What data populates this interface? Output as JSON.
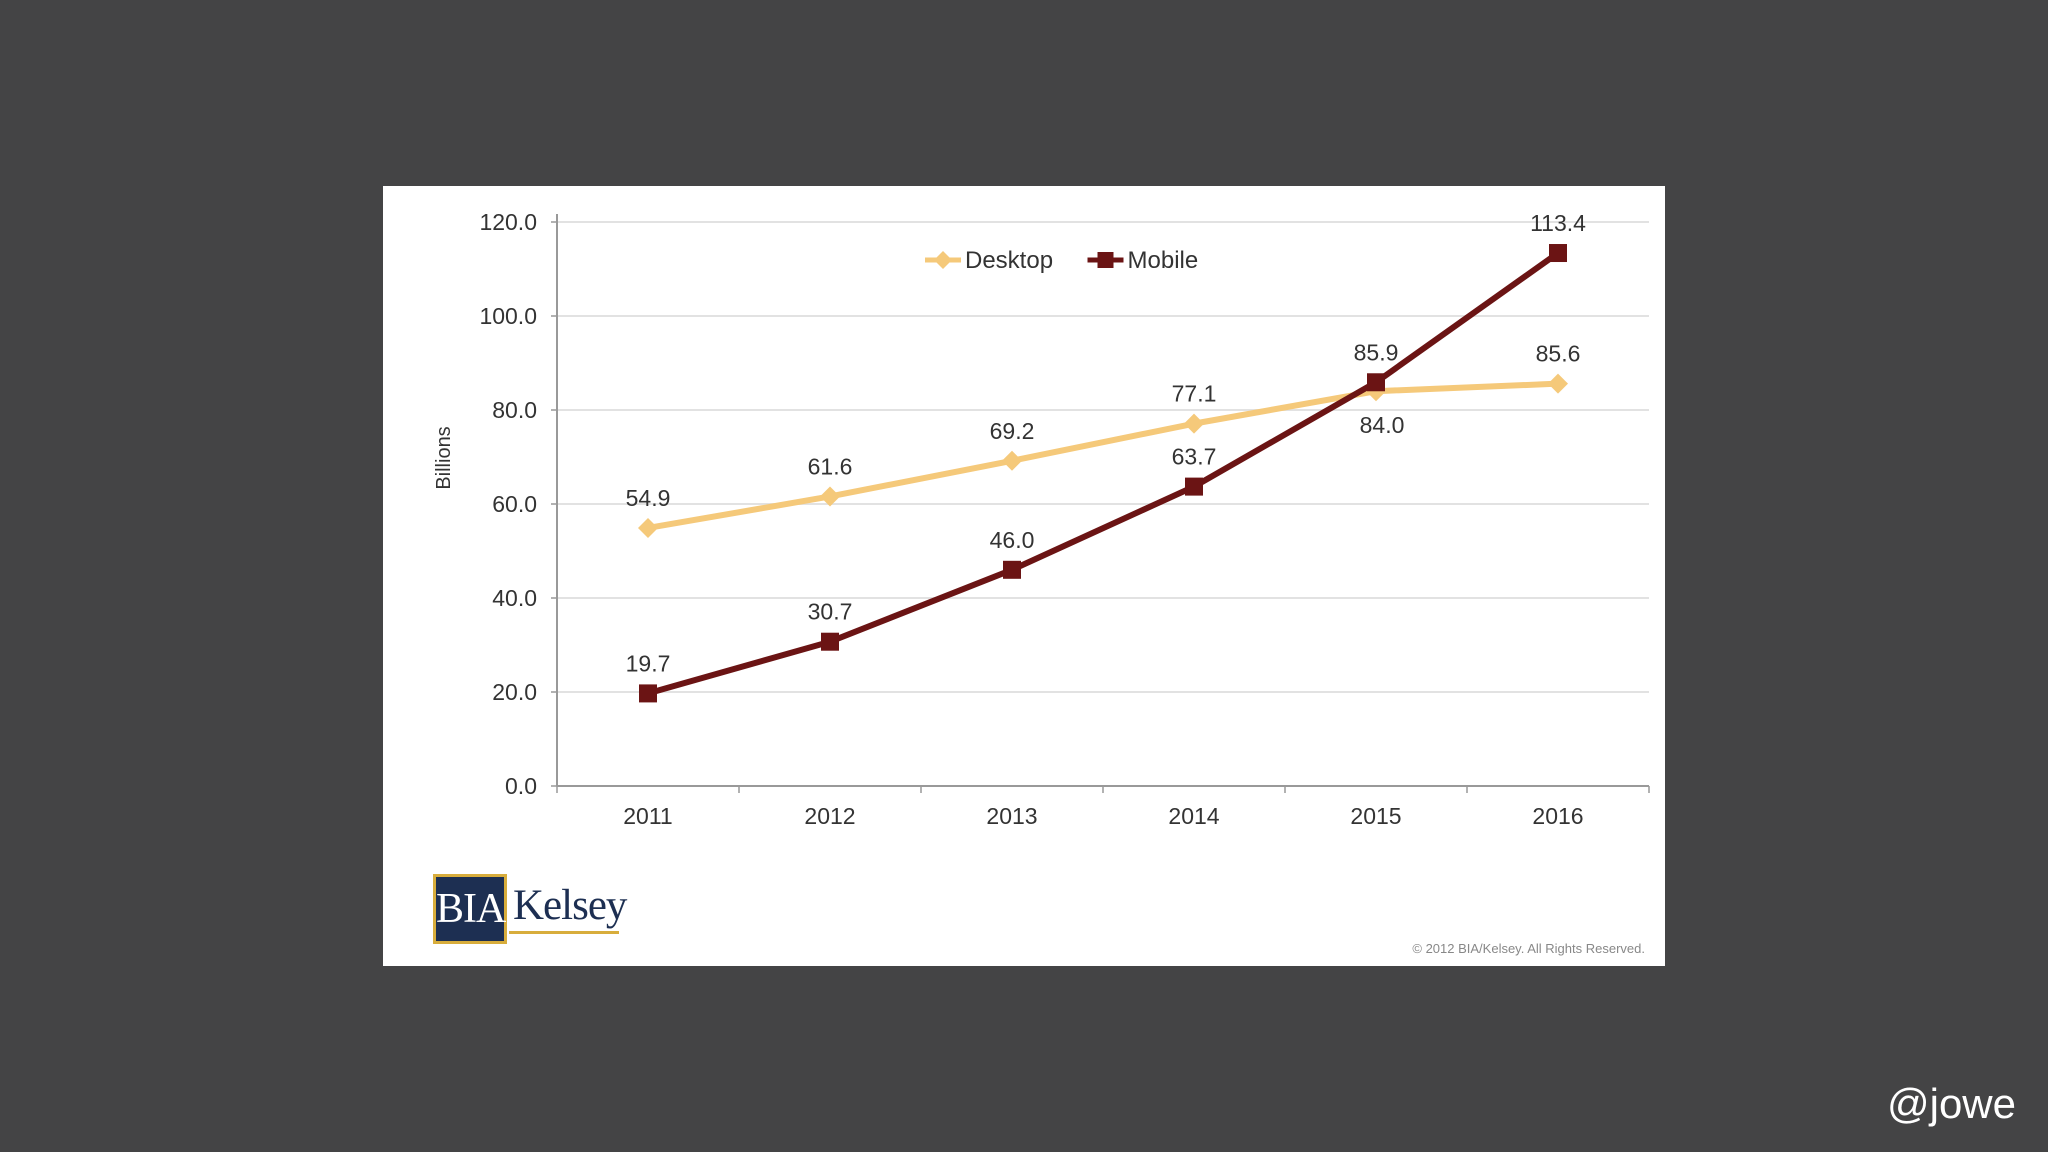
{
  "chart_data": {
    "type": "line",
    "categories": [
      "2011",
      "2012",
      "2013",
      "2014",
      "2015",
      "2016"
    ],
    "series": [
      {
        "name": "Desktop",
        "color": "#f5c97a",
        "marker": "diamond",
        "values": [
          54.9,
          61.6,
          69.2,
          77.1,
          84.0,
          85.6
        ]
      },
      {
        "name": "Mobile",
        "color": "#6b1414",
        "marker": "square",
        "values": [
          19.7,
          30.7,
          46.0,
          63.7,
          85.9,
          113.4
        ]
      }
    ],
    "ylabel": "Billions",
    "xlabel": "",
    "ylim": [
      0,
      120
    ],
    "yticks": [
      "0.0",
      "20.0",
      "40.0",
      "60.0",
      "80.0",
      "100.0",
      "120.0"
    ],
    "grid": true,
    "legend": "top-center"
  },
  "logo": {
    "bia": "BIA",
    "kelsey": "Kelsey"
  },
  "copyright": "© 2012 BIA/Kelsey. All Rights Reserved.",
  "handle": "@jowe"
}
